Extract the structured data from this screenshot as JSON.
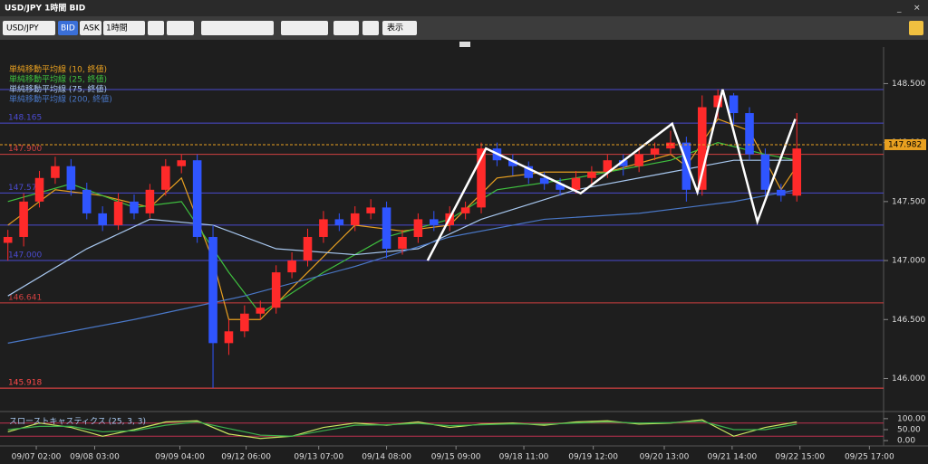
{
  "ui": {
    "window_title": "USD/JPY 1時間 BID",
    "symbol": "USD/JPY",
    "bid": "BID",
    "ask": "ASK",
    "period": "1時間",
    "view": "表示"
  },
  "chart_data": [
    {
      "type": "candlestick",
      "open": [
        147.15,
        147.2,
        147.5,
        147.7,
        147.8,
        147.6,
        147.4,
        147.3,
        147.5,
        147.4,
        147.6,
        147.8,
        147.85,
        147.2,
        146.3,
        146.4,
        146.55,
        146.6,
        146.9,
        147.0,
        147.2,
        147.35,
        147.3,
        147.4,
        147.45,
        147.1,
        147.2,
        147.35,
        147.3,
        147.4,
        147.45,
        147.95,
        147.85,
        147.8,
        147.7,
        147.65,
        147.6,
        147.7,
        147.75,
        147.85,
        147.8,
        147.9,
        147.95,
        148.0,
        147.6,
        148.3,
        148.4,
        148.25,
        147.9,
        147.6,
        147.55
      ],
      "high": [
        147.26,
        147.57,
        147.76,
        147.88,
        147.86,
        147.66,
        147.46,
        147.57,
        147.56,
        147.65,
        147.86,
        147.9,
        147.9,
        147.3,
        146.5,
        146.62,
        146.66,
        146.96,
        147.07,
        147.27,
        147.42,
        147.4,
        147.46,
        147.52,
        147.5,
        147.26,
        147.4,
        147.42,
        147.46,
        147.5,
        148.0,
        148.0,
        147.9,
        147.84,
        147.75,
        147.7,
        147.76,
        147.8,
        147.9,
        147.9,
        147.95,
        148.0,
        148.1,
        148.05,
        148.4,
        148.45,
        148.42,
        148.3,
        147.95,
        147.65,
        148.25
      ],
      "low": [
        147.0,
        147.12,
        147.45,
        147.65,
        147.55,
        147.35,
        147.25,
        147.26,
        147.35,
        147.36,
        147.55,
        147.74,
        147.15,
        145.92,
        146.2,
        146.35,
        146.5,
        146.55,
        146.85,
        146.95,
        147.15,
        147.25,
        147.25,
        147.35,
        147.02,
        147.05,
        147.15,
        147.25,
        147.25,
        147.35,
        147.4,
        147.8,
        147.72,
        147.65,
        147.6,
        147.55,
        147.57,
        147.65,
        147.7,
        147.72,
        147.75,
        147.85,
        147.9,
        147.5,
        147.55,
        148.2,
        148.15,
        147.85,
        147.55,
        147.5,
        147.5
      ],
      "close": [
        147.2,
        147.5,
        147.7,
        147.8,
        147.6,
        147.4,
        147.3,
        147.5,
        147.4,
        147.6,
        147.8,
        147.85,
        147.2,
        146.3,
        146.4,
        146.55,
        146.6,
        146.9,
        147.0,
        147.2,
        147.35,
        147.3,
        147.4,
        147.45,
        147.1,
        147.2,
        147.35,
        147.3,
        147.4,
        147.45,
        147.95,
        147.85,
        147.8,
        147.7,
        147.65,
        147.6,
        147.7,
        147.75,
        147.85,
        147.8,
        147.9,
        147.95,
        148.0,
        147.6,
        148.3,
        148.4,
        148.25,
        147.9,
        147.6,
        147.55,
        147.95
      ],
      "up_color": "#ff2a2a",
      "down_color": "#2f55ff",
      "xlim": [
        -0.5,
        55.5
      ],
      "xticks": [
        {
          "value": 1.8,
          "label": "09/07 02:00"
        },
        {
          "value": 5.5,
          "label": "09/08 03:00"
        },
        {
          "value": 10.9,
          "label": "09/09 04:00"
        },
        {
          "value": 15.1,
          "label": "09/12 06:00"
        },
        {
          "value": 19.7,
          "label": "09/13 07:00"
        },
        {
          "value": 24,
          "label": "09/14 08:00"
        },
        {
          "value": 28.4,
          "label": "09/15 09:00"
        },
        {
          "value": 32.7,
          "label": "09/18 11:00"
        },
        {
          "value": 37.1,
          "label": "09/19 12:00"
        },
        {
          "value": 41.6,
          "label": "09/20 13:00"
        },
        {
          "value": 45.9,
          "label": "09/21 14:00"
        },
        {
          "value": 50.2,
          "label": "09/22 15:00"
        },
        {
          "value": 54.6,
          "label": "09/25 17:00"
        }
      ],
      "ylim": [
        145.72,
        148.81
      ],
      "yticks": [
        {
          "value": 148.5,
          "label": "148.500"
        },
        {
          "value": 148,
          "label": "148.000"
        },
        {
          "value": 147.5,
          "label": "147.500"
        },
        {
          "value": 147,
          "label": "147.000"
        },
        {
          "value": 146.5,
          "label": "146.500"
        },
        {
          "value": 146,
          "label": "146.000"
        }
      ],
      "series": [
        {
          "name": "単純移動平均線 (10, 終値)",
          "color": "#e8a020",
          "x": [
            0,
            3,
            6,
            9,
            11,
            13,
            14,
            16,
            19,
            22,
            25,
            28,
            31,
            34,
            38,
            42,
            43,
            45,
            47,
            49,
            50
          ],
          "values": [
            147.3,
            147.6,
            147.55,
            147.45,
            147.7,
            147.0,
            146.5,
            146.5,
            146.9,
            147.3,
            147.25,
            147.3,
            147.7,
            147.75,
            147.75,
            147.9,
            147.8,
            148.2,
            148.1,
            147.6,
            147.8
          ]
        },
        {
          "name": "単純移動平均線 (25, 終値)",
          "color": "#3fc03f",
          "x": [
            0,
            4,
            8,
            11,
            14,
            16,
            20,
            24,
            28,
            31,
            36,
            42,
            45,
            48,
            50
          ],
          "values": [
            147.5,
            147.65,
            147.45,
            147.5,
            146.9,
            146.55,
            146.9,
            147.2,
            147.35,
            147.6,
            147.7,
            147.85,
            148.0,
            147.9,
            147.85
          ]
        },
        {
          "name": "単純移動平均線 (75, 終値)",
          "color": "#a8c8f0",
          "x": [
            0,
            5,
            9,
            13,
            17,
            22,
            26,
            30,
            36,
            42,
            46,
            50
          ],
          "values": [
            146.7,
            147.1,
            147.35,
            147.3,
            147.1,
            147.05,
            147.1,
            147.35,
            147.6,
            147.75,
            147.85,
            147.85
          ]
        },
        {
          "name": "単純移動平均線 (200, 終値)",
          "color": "#4a78c8",
          "x": [
            0,
            8,
            15,
            22,
            28,
            34,
            40,
            46,
            50
          ],
          "values": [
            146.3,
            146.5,
            146.7,
            146.95,
            147.2,
            147.35,
            147.4,
            147.5,
            147.6
          ]
        }
      ],
      "drawing": {
        "color": "#ffffff",
        "x": [
          26.6,
          30.3,
          36.3,
          42.1,
          43.7,
          45.3,
          47.5,
          49.9
        ],
        "values": [
          147.0,
          147.95,
          147.57,
          148.16,
          147.58,
          148.45,
          147.33,
          148.2
        ]
      },
      "hlines": [
        {
          "value": 148.45,
          "color": "#4b4bd0"
        },
        {
          "value": 148.165,
          "label": "148.165",
          "color": "#4b4bd0"
        },
        {
          "value": 147.9,
          "label": "147.900",
          "color": "#d04040"
        },
        {
          "value": 147.573,
          "label": "147.573",
          "color": "#4b4bd0"
        },
        {
          "value": 147.3,
          "color": "#4b4bd0"
        },
        {
          "value": 147.0,
          "label": "147.000",
          "color": "#4b4bd0"
        },
        {
          "value": 146.641,
          "label": "146.641",
          "color": "#d04040"
        },
        {
          "value": 145.918,
          "label": "145.918",
          "color": "#ff4a4a"
        }
      ],
      "current": {
        "value": 147.982,
        "label": "147.982",
        "color": "#e8a020"
      }
    },
    {
      "type": "line",
      "title": "スローストキャスティクス (25, 3, 3)",
      "ylim": [
        -20,
        120
      ],
      "yticks": [
        {
          "value": 100,
          "label": "100.00"
        },
        {
          "value": 50,
          "label": "50.00"
        },
        {
          "value": 0,
          "label": "0.00"
        }
      ],
      "levels": [
        80,
        20
      ],
      "series": [
        {
          "color": "#c8e860",
          "x": [
            0,
            2,
            4,
            6,
            8,
            10,
            12,
            14,
            16,
            18,
            20,
            22,
            24,
            26,
            28,
            30,
            32,
            34,
            36,
            38,
            40,
            42,
            44,
            46,
            48,
            50
          ],
          "values": [
            40,
            80,
            60,
            20,
            50,
            85,
            90,
            30,
            10,
            20,
            60,
            80,
            70,
            85,
            60,
            75,
            80,
            70,
            85,
            90,
            75,
            80,
            95,
            20,
            60,
            85
          ]
        },
        {
          "color": "#3cb04c",
          "x": [
            0,
            2,
            4,
            6,
            8,
            10,
            12,
            14,
            16,
            18,
            20,
            22,
            24,
            26,
            28,
            30,
            32,
            34,
            36,
            38,
            40,
            42,
            44,
            46,
            48,
            50
          ],
          "values": [
            50,
            65,
            65,
            40,
            45,
            70,
            85,
            55,
            25,
            20,
            45,
            70,
            72,
            78,
            68,
            72,
            76,
            75,
            80,
            85,
            80,
            82,
            88,
            50,
            50,
            75
          ]
        }
      ]
    }
  ]
}
